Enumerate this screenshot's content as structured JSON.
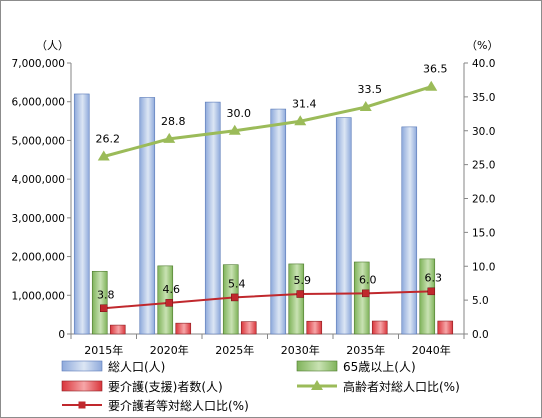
{
  "chart_data": {
    "type": "bar",
    "categories": [
      "2015年",
      "2020年",
      "2025年",
      "2030年",
      "2035年",
      "2040年"
    ],
    "left_axis": {
      "unit": "（人）",
      "ylim": [
        0,
        7000000
      ],
      "ticks": [
        "0",
        "1,000,000",
        "2,000,000",
        "3,000,000",
        "4,000,000",
        "5,000,000",
        "6,000,000",
        "7,000,000"
      ]
    },
    "right_axis": {
      "unit": "（%）",
      "ylim": [
        0,
        40
      ],
      "ticks": [
        "0.0",
        "5.0",
        "10.0",
        "15.0",
        "20.0",
        "25.0",
        "30.0",
        "35.0",
        "40.0"
      ]
    },
    "series": [
      {
        "name": "総人口(人)",
        "type": "bar",
        "axis": "left",
        "color": "#8EA9DB",
        "values": [
          6200000,
          6110000,
          5990000,
          5810000,
          5590000,
          5350000
        ]
      },
      {
        "name": "65歳以上(人)",
        "type": "bar",
        "axis": "left",
        "color": "#92C46C",
        "values": [
          1620000,
          1760000,
          1790000,
          1810000,
          1860000,
          1940000
        ]
      },
      {
        "name": "要介護(支援)者数(人)",
        "type": "bar",
        "axis": "left",
        "color": "#E0464B",
        "values": [
          230000,
          280000,
          320000,
          330000,
          335000,
          335000
        ]
      },
      {
        "name": "高齢者対総人口比(%)",
        "type": "line",
        "axis": "right",
        "color": "#9BBB59",
        "values": [
          26.2,
          28.8,
          30.0,
          31.4,
          33.5,
          36.5
        ],
        "labels": [
          "26.2",
          "28.8",
          "30.0",
          "31.4",
          "33.5",
          "36.5"
        ]
      },
      {
        "name": "要介護者等対総人口比(%)",
        "type": "line",
        "axis": "right",
        "color": "#C0282D",
        "values": [
          3.8,
          4.6,
          5.4,
          5.9,
          6.0,
          6.3
        ],
        "labels": [
          "3.8",
          "4.6",
          "5.4",
          "5.9",
          "6.0",
          "6.3"
        ]
      }
    ],
    "grid": false,
    "legend": "bottom"
  }
}
